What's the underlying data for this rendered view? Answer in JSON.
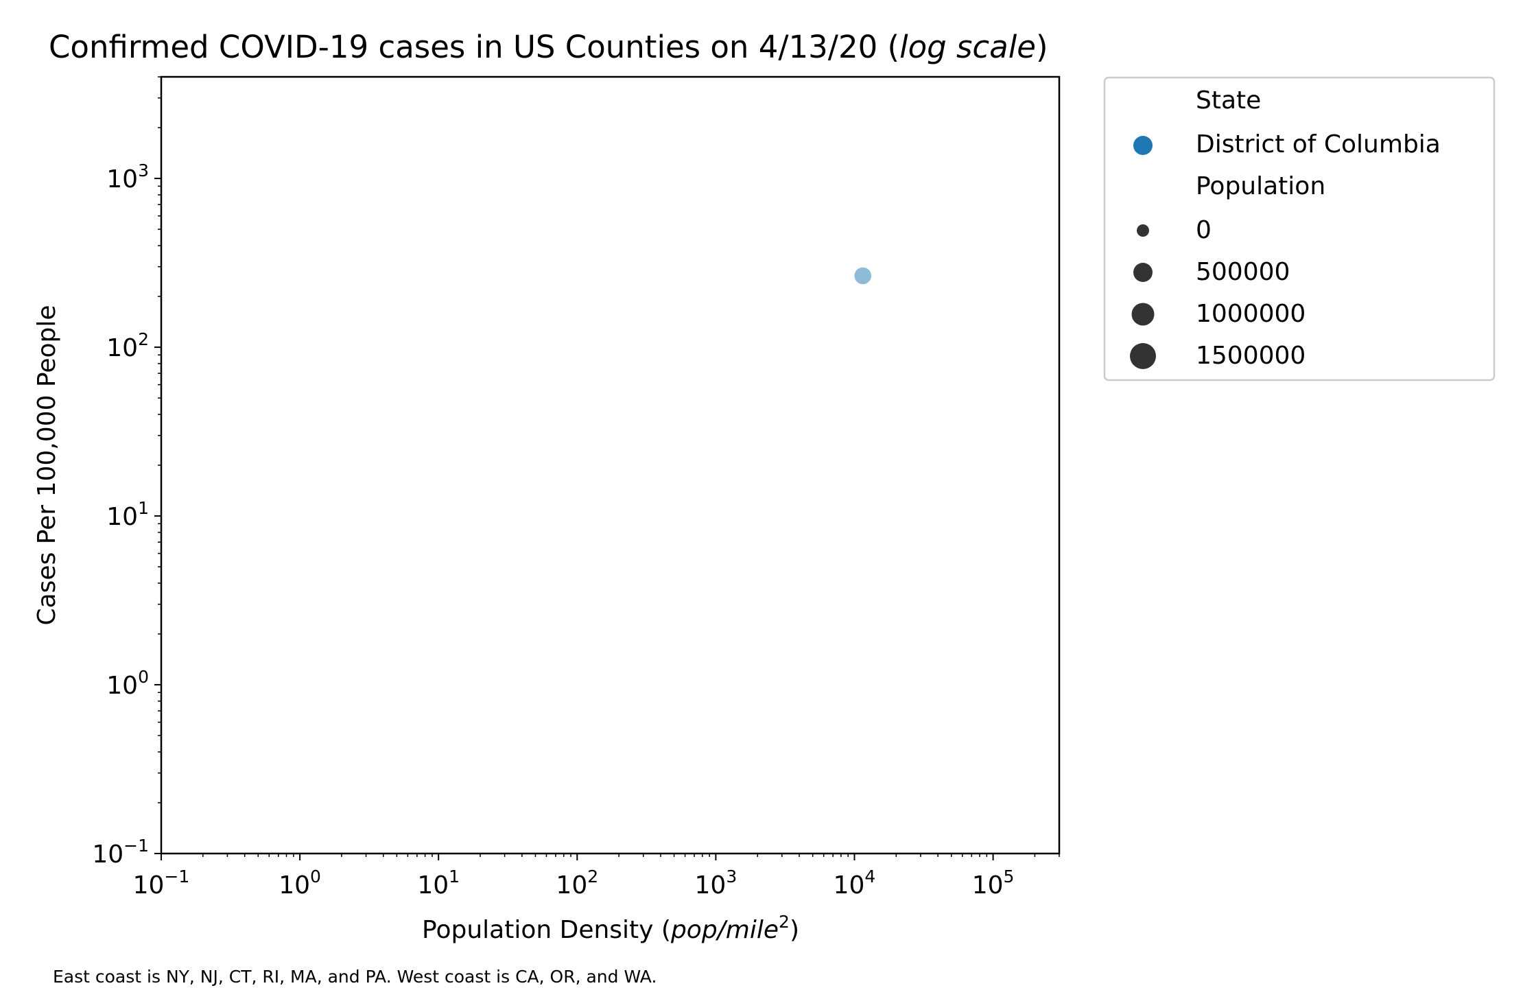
{
  "chart_data": {
    "type": "scatter",
    "title": {
      "prefix": "Confirmed COVID-19 cases in US Counties on 4/13/20 (",
      "italic": "log scale",
      "suffix": ")"
    },
    "xlabel": {
      "prefix": "Population Density (",
      "italic": "pop/mile",
      "superscript": "2",
      "suffix": ")"
    },
    "ylabel": "Cases Per 100,000 People",
    "xscale": "log",
    "yscale": "log",
    "xlim": [
      0.1,
      300000
    ],
    "ylim": [
      0.1,
      4000
    ],
    "x_ticks": [
      {
        "value": 0.1,
        "base": "10",
        "exp": "−1"
      },
      {
        "value": 1,
        "base": "10",
        "exp": "0"
      },
      {
        "value": 10,
        "base": "10",
        "exp": "1"
      },
      {
        "value": 100,
        "base": "10",
        "exp": "2"
      },
      {
        "value": 1000,
        "base": "10",
        "exp": "3"
      },
      {
        "value": 10000,
        "base": "10",
        "exp": "4"
      },
      {
        "value": 100000,
        "base": "10",
        "exp": "5"
      }
    ],
    "y_ticks": [
      {
        "value": 0.1,
        "base": "10",
        "exp": "−1"
      },
      {
        "value": 1,
        "base": "10",
        "exp": "0"
      },
      {
        "value": 10,
        "base": "10",
        "exp": "1"
      },
      {
        "value": 100,
        "base": "10",
        "exp": "2"
      },
      {
        "value": 1000,
        "base": "10",
        "exp": "3"
      }
    ],
    "grid": false,
    "series": [
      {
        "name": "District of Columbia",
        "color": "#1f77b4",
        "points": [
          {
            "x": 11500,
            "y": 265,
            "population": 705749
          }
        ]
      }
    ],
    "legend": {
      "placement": "outside-upper-right",
      "state_title": "State",
      "population_title": "Population",
      "size_entries": [
        "0",
        "500000",
        "1000000",
        "1500000"
      ],
      "marker_color": "#333333"
    },
    "footnote": "East coast is NY, NJ, CT, RI, MA, and PA. West coast is CA, OR, and WA."
  }
}
